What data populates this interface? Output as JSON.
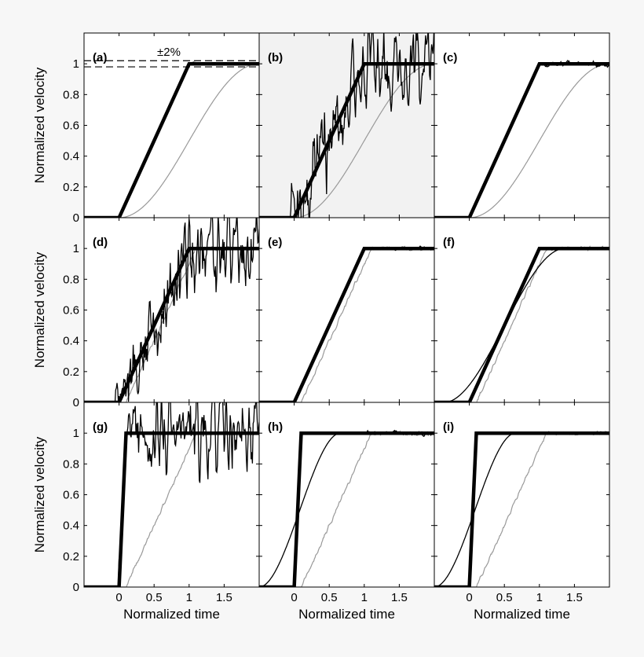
{
  "figure": {
    "background": "#f7f7f7",
    "panel_background": "#ffffff",
    "highlight_background": "#f2f2f2"
  },
  "chart_data": {
    "type": "line",
    "grid": false,
    "xlabel": "Normalized time",
    "ylabel": "Normalized velocity",
    "xlim": [
      -0.5,
      2.0
    ],
    "ylim": [
      0,
      1.2
    ],
    "xticks": [
      "0",
      "0.5",
      "1",
      "1.5"
    ],
    "yticks": [
      "0",
      "0.2",
      "0.4",
      "0.6",
      "0.8",
      "1"
    ],
    "annotation": "±2%",
    "tolerance_band": [
      0.98,
      1.02
    ],
    "colors": {
      "reference": "#000000",
      "estimate": "#000000",
      "lagged": "#999999"
    },
    "panels": [
      {
        "label": "(a)",
        "ramp_start": 0.0,
        "ramp_end": 1.0,
        "noise": 0.0,
        "lag": 1.0,
        "estimate": "tracking",
        "highlight": false,
        "tolerance": true
      },
      {
        "label": "(b)",
        "ramp_start": 0.0,
        "ramp_end": 1.0,
        "noise": 0.09,
        "lag": 1.0,
        "estimate": "noisy",
        "highlight": true,
        "tolerance": false
      },
      {
        "label": "(c)",
        "ramp_start": 0.0,
        "ramp_end": 1.0,
        "noise": 0.0,
        "lag": 1.0,
        "estimate": "ripple",
        "highlight": false,
        "tolerance": false
      },
      {
        "label": "(d)",
        "ramp_start": 0.0,
        "ramp_end": 1.0,
        "noise": 0.09,
        "lag": 1.0,
        "estimate": "noisy",
        "highlight": false,
        "tolerance": false
      },
      {
        "label": "(e)",
        "ramp_start": 0.0,
        "ramp_end": 1.0,
        "noise": 0.012,
        "lag": 1.0,
        "estimate": "tracking",
        "highlight": false,
        "tolerance": false
      },
      {
        "label": "(f)",
        "ramp_start": 0.0,
        "ramp_end": 1.0,
        "noise": 0.0,
        "lag": 1.0,
        "estimate": "smooth",
        "highlight": false,
        "tolerance": false
      },
      {
        "label": "(g)",
        "ramp_start": 0.0,
        "ramp_end": 0.1,
        "noise": 0.09,
        "lag": 1.0,
        "estimate": "noisy",
        "highlight": false,
        "tolerance": false
      },
      {
        "label": "(h)",
        "ramp_start": 0.0,
        "ramp_end": 0.1,
        "noise": 0.01,
        "lag": 1.0,
        "estimate": "smooth",
        "highlight": false,
        "tolerance": false
      },
      {
        "label": "(i)",
        "ramp_start": 0.0,
        "ramp_end": 0.1,
        "noise": 0.0,
        "lag": 1.0,
        "estimate": "smooth",
        "highlight": false,
        "tolerance": false
      }
    ]
  }
}
